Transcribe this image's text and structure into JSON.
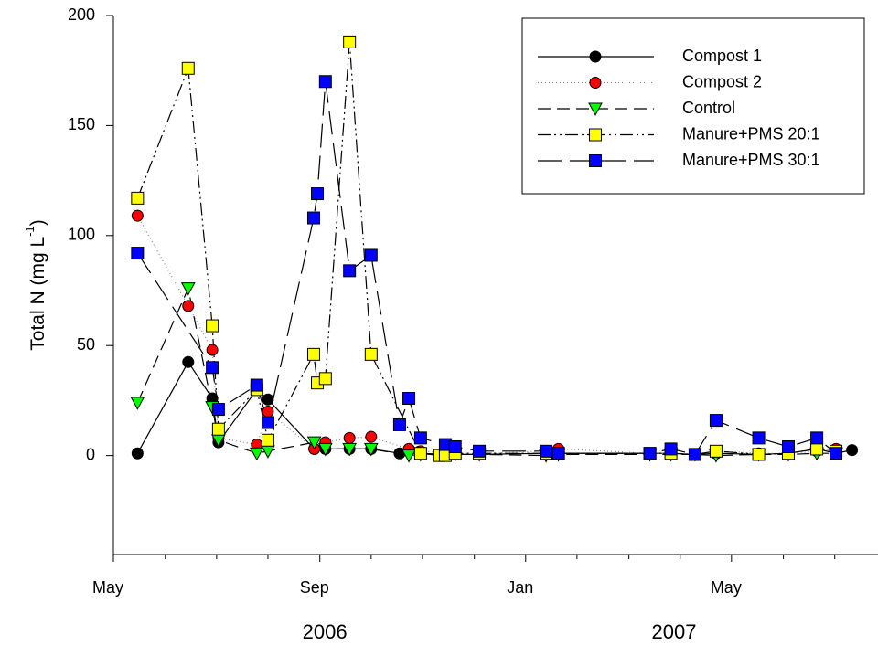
{
  "chart_data": {
    "type": "line",
    "y_label": {
      "text": "Total N (mg L",
      "sup": "-1",
      "end": ")"
    },
    "xlim": [
      2006.333,
      2007.57
    ],
    "ylim": [
      -45,
      200
    ],
    "yticks": [
      0,
      50,
      100,
      150,
      200
    ],
    "xticks": [
      {
        "value": 2006.333,
        "label": "May"
      },
      {
        "value": 2006.667,
        "label": "Sep"
      },
      {
        "value": 2007.0,
        "label": "Jan"
      },
      {
        "value": 2007.333,
        "label": "May"
      }
    ],
    "xticks_minor": [
      2006.417,
      2006.5,
      2006.583,
      2006.75,
      2006.833,
      2006.917,
      2007.083,
      2007.167,
      2007.25,
      2007.417,
      2007.5
    ],
    "year_labels": [
      {
        "value": 2006.675,
        "label": "2006"
      },
      {
        "value": 2007.24,
        "label": "2007"
      }
    ],
    "legend": "upper right",
    "series": [
      {
        "name": "Compost 1",
        "color": "#000000",
        "linestyle": "solid",
        "marker": "circle",
        "x": [
          2006.372,
          2006.454,
          2006.493,
          2006.503,
          2006.565,
          2006.583,
          2006.658,
          2006.676,
          2006.715,
          2006.75,
          2006.796,
          2006.83,
          2006.87,
          2006.886,
          2006.925,
          2007.033,
          2007.053,
          2007.201,
          2007.235,
          2007.274,
          2007.308,
          2007.377,
          2007.425,
          2007.471,
          2007.502,
          2007.528
        ],
        "values": [
          1,
          42.5,
          26,
          6,
          30,
          25.5,
          3,
          3,
          3,
          3,
          1,
          1,
          0.5,
          0.5,
          0.5,
          1,
          1,
          1,
          1,
          0.5,
          1,
          0.5,
          1,
          3,
          1,
          2.5
        ]
      },
      {
        "name": "Compost 2",
        "color": "#ff0000",
        "linestyle": "dotted",
        "marker": "circle",
        "x": [
          2006.372,
          2006.454,
          2006.493,
          2006.503,
          2006.565,
          2006.583,
          2006.658,
          2006.676,
          2006.715,
          2006.75,
          2006.811,
          2006.83,
          2006.886,
          2006.925,
          2007.033,
          2007.053,
          2007.201,
          2007.235,
          2007.274,
          2007.308,
          2007.377,
          2007.425,
          2007.471,
          2007.502
        ],
        "values": [
          109,
          68,
          48,
          8,
          5,
          20,
          3,
          6,
          8,
          8.5,
          3,
          2,
          1,
          1,
          2,
          3,
          1,
          1,
          0.5,
          2,
          1,
          1,
          2,
          3
        ]
      },
      {
        "name": "Control",
        "color": "#00ff00",
        "linestyle": "dashed",
        "marker": "triangle",
        "x": [
          2006.372,
          2006.454,
          2006.493,
          2006.503,
          2006.565,
          2006.583,
          2006.658,
          2006.676,
          2006.715,
          2006.75,
          2006.811,
          2006.83,
          2006.886,
          2006.925,
          2007.033,
          2007.053,
          2007.201,
          2007.235,
          2007.274,
          2007.308,
          2007.377,
          2007.425,
          2007.471,
          2007.502
        ],
        "values": [
          24,
          76,
          22,
          7,
          1,
          2,
          6,
          3,
          3,
          3,
          0,
          0.5,
          0.5,
          0.5,
          0,
          0.5,
          0.5,
          0.5,
          0.5,
          0,
          0.5,
          0.5,
          1,
          1
        ]
      },
      {
        "name": "Manure+PMS 20:1",
        "color": "#ffff00",
        "linestyle": "dashdotdot",
        "marker": "square",
        "x": [
          2006.372,
          2006.454,
          2006.493,
          2006.503,
          2006.565,
          2006.583,
          2006.657,
          2006.663,
          2006.676,
          2006.715,
          2006.75,
          2006.83,
          2006.86,
          2006.87,
          2006.886,
          2006.925,
          2007.033,
          2007.053,
          2007.201,
          2007.235,
          2007.274,
          2007.308,
          2007.377,
          2007.425,
          2007.471,
          2007.502
        ],
        "values": [
          117,
          176,
          59,
          12,
          30,
          7,
          46,
          33,
          35,
          188,
          46,
          1,
          0,
          0,
          1,
          1,
          1,
          1,
          1,
          1,
          0.5,
          2,
          0.5,
          1,
          3,
          2
        ]
      },
      {
        "name": "Manure+PMS 30:1",
        "color": "#0000ff",
        "linestyle": "longdash",
        "marker": "square",
        "x": [
          2006.372,
          2006.493,
          2006.503,
          2006.565,
          2006.583,
          2006.657,
          2006.663,
          2006.676,
          2006.715,
          2006.75,
          2006.796,
          2006.811,
          2006.83,
          2006.87,
          2006.886,
          2006.925,
          2007.033,
          2007.053,
          2007.201,
          2007.235,
          2007.274,
          2007.308,
          2007.377,
          2007.425,
          2007.471,
          2007.502
        ],
        "values": [
          92,
          40,
          21,
          32,
          15,
          108,
          119,
          170,
          84,
          91,
          14,
          26,
          8,
          5,
          4,
          2,
          2,
          1,
          1,
          3,
          0.5,
          16,
          8,
          4,
          8,
          1
        ]
      }
    ]
  }
}
